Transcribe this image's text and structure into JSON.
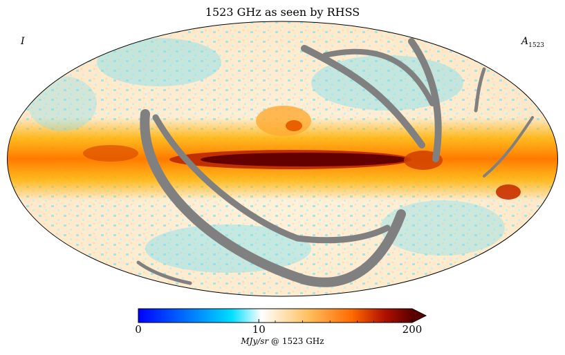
{
  "title": "1523 GHz as seen by RHSS",
  "stokes_label": "I",
  "component_label": "A",
  "component_subscript": "1523",
  "colorbar": {
    "ticks": [
      {
        "value": 0,
        "label": "0"
      },
      {
        "value": 10,
        "label": "10"
      },
      {
        "value": 200,
        "label": "200"
      }
    ],
    "min": 0,
    "max": 200,
    "unit": "MJy/sr",
    "freq_text": "@ 1523 GHz",
    "extend": "max",
    "colors": [
      "#0000ff",
      "#0080ff",
      "#00ddff",
      "#ffffff",
      "#ffc060",
      "#ff6a00",
      "#b01000",
      "#5a0000"
    ]
  },
  "map": {
    "projection": "mollweide",
    "masked_color": "#808080"
  }
}
